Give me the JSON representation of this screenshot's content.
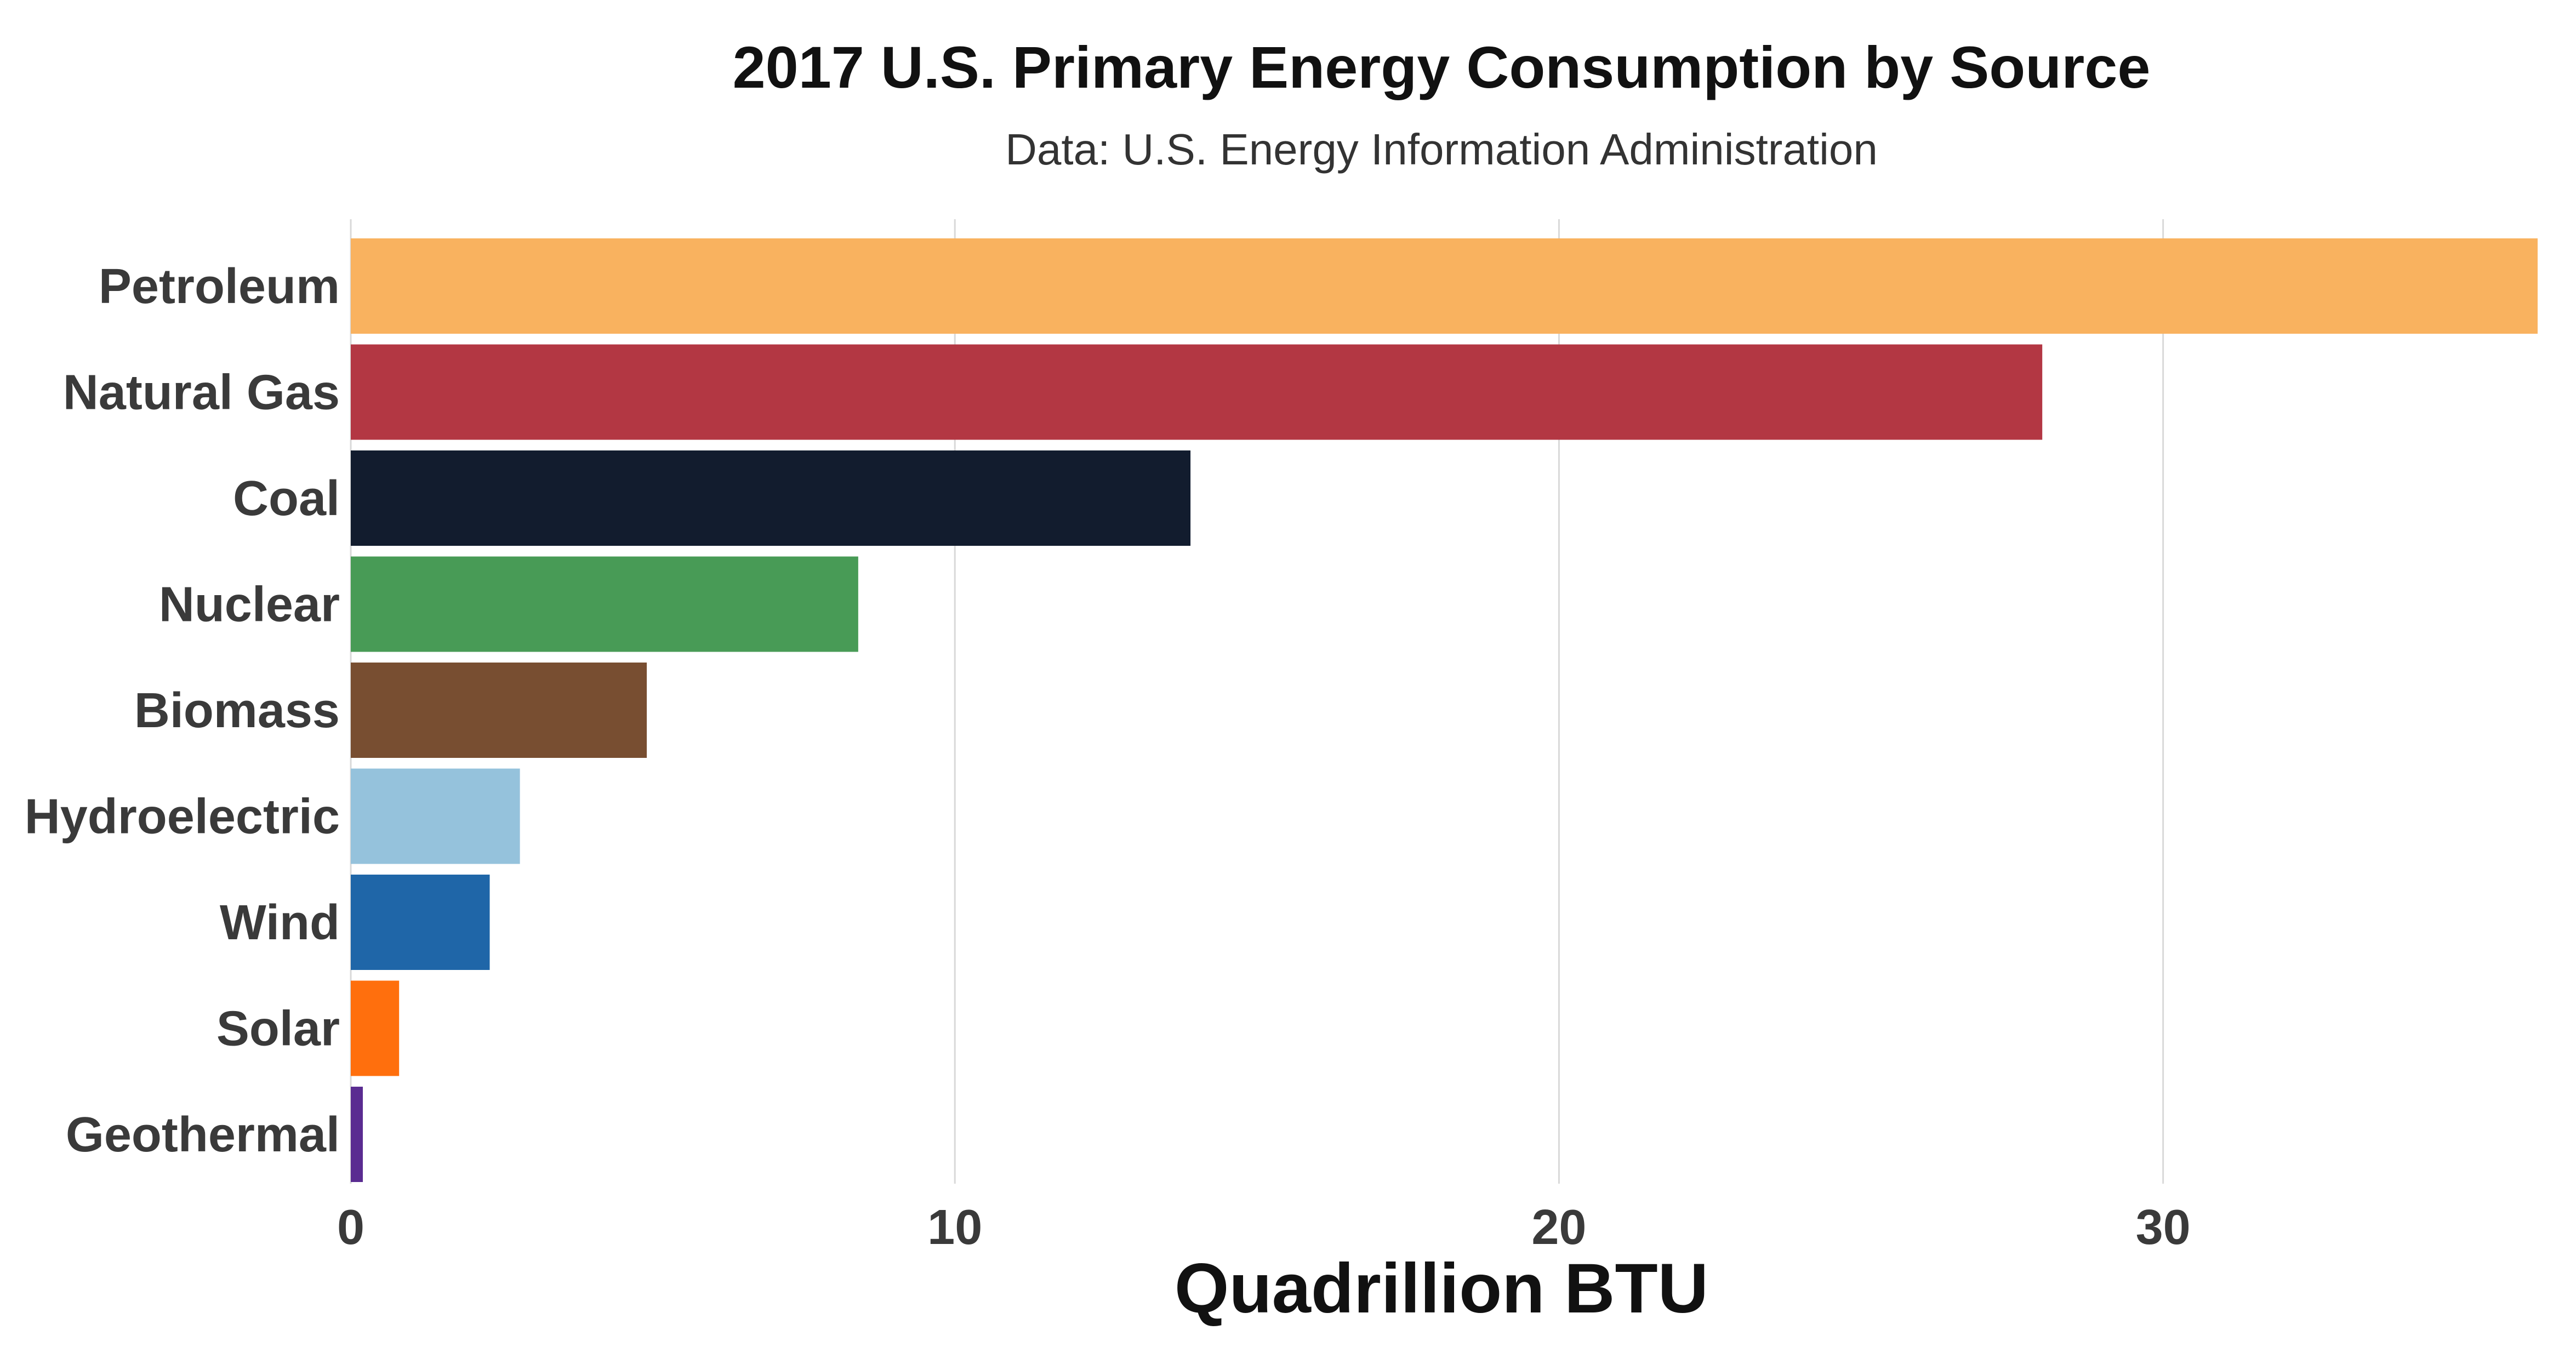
{
  "chart_data": {
    "type": "bar",
    "orientation": "horizontal",
    "title": "2017 U.S. Primary Energy Consumption by Source",
    "subtitle": "Data: U.S. Energy Information Administration",
    "xlabel": "Quadrillion BTU",
    "ylabel": "",
    "xlim": [
      0,
      36.2
    ],
    "xticks": [
      0,
      10,
      20,
      30
    ],
    "grid": "vertical",
    "categories": [
      "Petroleum",
      "Natural Gas",
      "Coal",
      "Nuclear",
      "Biomass",
      "Hydroelectric",
      "Wind",
      "Solar",
      "Geothermal"
    ],
    "values": [
      36.2,
      28.0,
      13.9,
      8.4,
      4.9,
      2.8,
      2.3,
      0.8,
      0.2
    ],
    "colors": [
      "#F9B25F",
      "#B33743",
      "#121C2E",
      "#489B56",
      "#784E31",
      "#95C2DC",
      "#1F66A8",
      "#FF6F0D",
      "#5A2C91"
    ]
  }
}
